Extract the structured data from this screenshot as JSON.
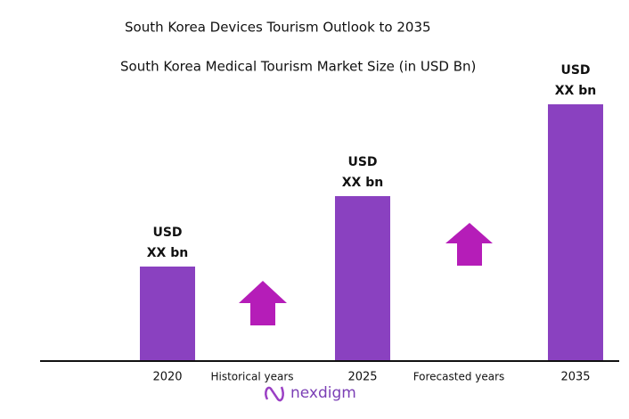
{
  "chart_data": {
    "type": "bar",
    "title": "South Korea Devices Tourism Outlook to 2035",
    "subtitle": "South Korea Medical Tourism Market Size (in USD Bn)",
    "categories": [
      "2020",
      "2025",
      "2035"
    ],
    "values": [
      105,
      184,
      287
    ],
    "value_labels": [
      [
        "USD",
        "XX bn"
      ],
      [
        "USD",
        "XX bn"
      ],
      [
        "USD",
        "XX bn"
      ]
    ],
    "color": "#8a41c0",
    "ylim": [
      0,
      300
    ],
    "annotations": [
      "Historical years",
      "Forecasted years"
    ],
    "logo": "nexdigm"
  }
}
